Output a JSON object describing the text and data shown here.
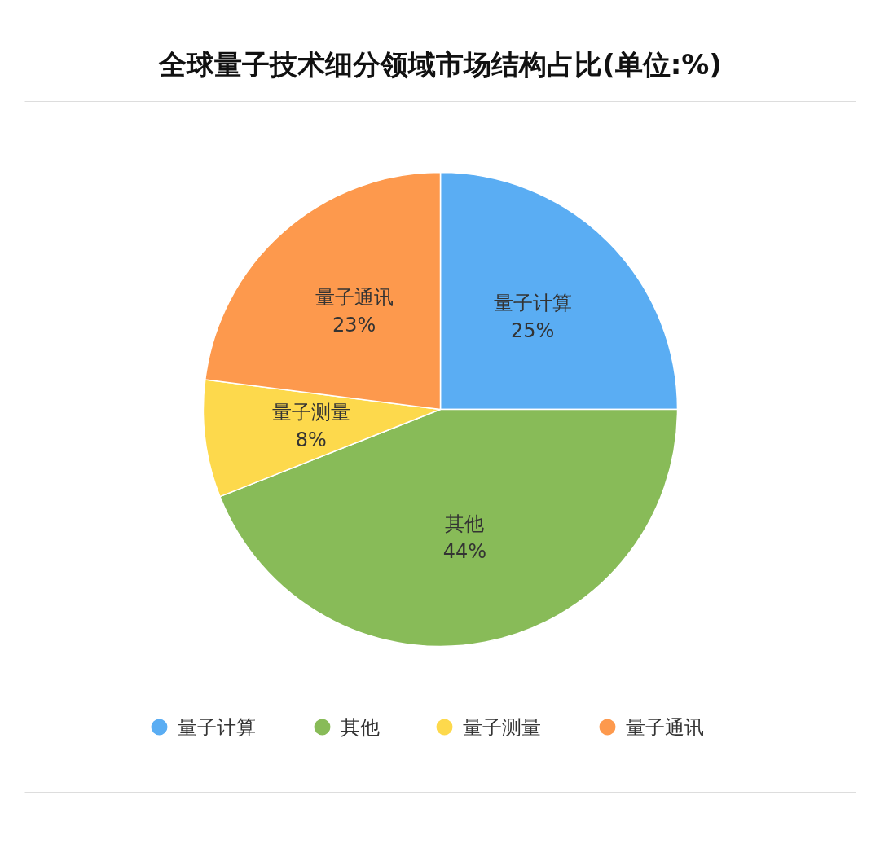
{
  "chart_data": {
    "type": "pie",
    "title": "全球量子技术细分领域市场结构占比(单位:%)",
    "categories": [
      "量子计算",
      "其他",
      "量子测量",
      "量子通讯"
    ],
    "values": [
      25,
      44,
      8,
      23
    ],
    "colors": [
      "#5aadf3",
      "#88bb58",
      "#fdd94c",
      "#fd994d"
    ],
    "value_labels": [
      "25%",
      "44%",
      "8%",
      "23%"
    ],
    "legend": "bottom"
  }
}
